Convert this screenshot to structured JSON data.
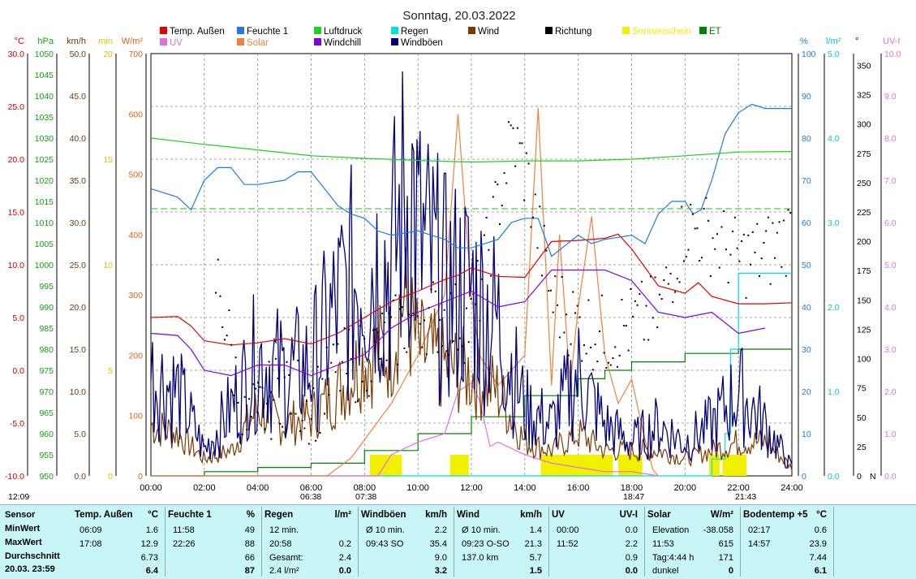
{
  "title": "Sonntag, 20.03.2022",
  "legend": [
    {
      "name": "Temp. Außen",
      "color": "#e00000"
    },
    {
      "name": "Feuchte 1",
      "color": "#1f7be0"
    },
    {
      "name": "Luftdruck",
      "color": "#20d020"
    },
    {
      "name": "Regen",
      "color": "#00e0e0"
    },
    {
      "name": "Wind",
      "color": "#7a3a00"
    },
    {
      "name": "Richtung",
      "color": "#000000"
    },
    {
      "name": "Sonnenschein",
      "color": "#f0f000"
    },
    {
      "name": "ET",
      "color": "#008000"
    },
    {
      "name": "UV",
      "color": "#e070e0"
    },
    {
      "name": "Solar",
      "color": "#f08040"
    },
    {
      "name": "Windchill",
      "color": "#8000e0"
    },
    {
      "name": "Windböen",
      "color": "#00007a"
    }
  ],
  "axes_left": [
    {
      "unit": "°C",
      "color": "#d00000",
      "ticks": [
        "30.0",
        "25.0",
        "20.0",
        "15.0",
        "10.0",
        "5.0",
        "0.0",
        "-5.0",
        "-10.0"
      ]
    },
    {
      "unit": "hPa",
      "color": "#10a010",
      "ticks": [
        "1050",
        "1045",
        "1040",
        "1035",
        "1030",
        "1025",
        "1020",
        "1015",
        "1010",
        "1005",
        "1000",
        "995",
        "990",
        "985",
        "980",
        "975",
        "970",
        "965",
        "960",
        "955",
        "950"
      ]
    },
    {
      "unit": "km/h",
      "color": "#6a3a10",
      "ticks": [
        "50.0",
        "45.0",
        "40.0",
        "35.0",
        "30.0",
        "25.0",
        "20.0",
        "15.0",
        "10.0",
        "5.0",
        "0.0"
      ]
    },
    {
      "unit": "min",
      "color": "#e0c000",
      "ticks": [
        "20",
        "15",
        "10",
        "5",
        "0"
      ]
    },
    {
      "unit": "W/m²",
      "color": "#e06020",
      "ticks": [
        "700",
        "600",
        "500",
        "400",
        "300",
        "200",
        "100",
        "0"
      ]
    }
  ],
  "axes_right": [
    {
      "unit": "%",
      "color": "#1f7be0",
      "ticks": [
        "100",
        "90",
        "80",
        "70",
        "60",
        "50",
        "40",
        "30",
        "20",
        "10",
        "0"
      ]
    },
    {
      "unit": "l/m²",
      "color": "#00c8d0",
      "ticks": [
        "5.0",
        "4.0",
        "3.0",
        "2.0",
        "1.0",
        "0.0"
      ]
    },
    {
      "unit": "°",
      "color": "#000000",
      "ticks": [
        "350",
        "325",
        "300",
        "275",
        "250",
        "225",
        "200",
        "175",
        "150",
        "125",
        "100",
        "75",
        "50",
        "25",
        "0"
      ],
      "extra": "N"
    },
    {
      "unit": "UV-I",
      "color": "#e070e0",
      "ticks": [
        "10.0",
        "9.0",
        "8.0",
        "7.0",
        "6.0",
        "5.0",
        "4.0",
        "3.0",
        "2.0",
        "1.0",
        "0.0"
      ]
    }
  ],
  "x_ticks": [
    "00:00",
    "02:00",
    "04:00",
    "06:00",
    "08:00",
    "10:00",
    "12:00",
    "14:00",
    "16:00",
    "18:00",
    "20:00",
    "22:00",
    "24:00"
  ],
  "sun_markers": {
    "now": "12:09",
    "sunrise": "06:38",
    "sunrise2": "07:38",
    "sunset": "18:47",
    "sunset2": "21:43"
  },
  "chart_data": {
    "type": "line",
    "title": "Sonntag, 20.03.2022",
    "x_unit": "hour of day",
    "xlim": [
      0,
      24
    ],
    "series": [
      {
        "name": "Temp. Außen",
        "unit": "°C",
        "x": [
          0,
          1,
          1.5,
          2,
          3,
          4,
          5,
          6,
          7,
          8,
          9,
          10,
          11,
          11.5,
          12,
          13,
          14,
          14.5,
          15,
          16,
          17,
          17.5,
          18,
          19,
          20,
          20.5,
          21,
          22,
          23,
          24
        ],
        "values": [
          5.0,
          5.1,
          4.2,
          2.8,
          2.4,
          2.6,
          3.0,
          2.5,
          3.5,
          5.0,
          6.5,
          7.5,
          8.6,
          9.0,
          9.7,
          8.9,
          8.8,
          10.5,
          12.2,
          12.3,
          12.5,
          12.9,
          11.5,
          8.0,
          7.3,
          8.3,
          7.0,
          6.3,
          6.3,
          6.4
        ]
      },
      {
        "name": "Feuchte 1",
        "unit": "%",
        "x": [
          0,
          1,
          1.5,
          2,
          2.5,
          3,
          3.5,
          4,
          5,
          5.5,
          6,
          6.5,
          7,
          7.5,
          8,
          8.5,
          9,
          10,
          10.5,
          11,
          11.5,
          12,
          13,
          13.5,
          14,
          14.5,
          15,
          16,
          16.5,
          17,
          18,
          18.5,
          19,
          19.5,
          20,
          20.3,
          20.6,
          21,
          21.5,
          22,
          22.5,
          23,
          24
        ],
        "values": [
          68,
          66,
          63,
          70,
          73,
          73,
          69,
          69,
          70,
          72,
          72,
          68,
          64,
          62,
          61,
          58,
          57,
          58,
          57,
          56,
          54,
          54,
          56,
          60,
          61,
          61,
          52,
          57,
          55,
          56,
          57,
          55,
          62,
          65,
          65,
          62,
          63,
          70,
          81,
          86,
          88,
          87,
          87
        ]
      },
      {
        "name": "Luftdruck",
        "unit": "hPa",
        "x": [
          0,
          2,
          4,
          6,
          8,
          10,
          12,
          14,
          16,
          18,
          20,
          22,
          24
        ],
        "values": [
          1030.0,
          1028.5,
          1027.2,
          1025.8,
          1025.2,
          1024.7,
          1024.3,
          1024.6,
          1024.6,
          1025.0,
          1025.8,
          1026.7,
          1026.8
        ]
      },
      {
        "name": "Windchill",
        "unit": "°C",
        "x": [
          0,
          1,
          1.5,
          2,
          3,
          4,
          5,
          6,
          7,
          8,
          9,
          10,
          11,
          12,
          13,
          14,
          15,
          16,
          17,
          18,
          19,
          20,
          21,
          22,
          23
        ],
        "values": [
          3.5,
          3.3,
          2.0,
          0.0,
          -0.5,
          0.5,
          0.5,
          -0.5,
          0.5,
          1.5,
          4.0,
          5.5,
          6.5,
          7.5,
          6.0,
          6.5,
          9.5,
          9.5,
          9.5,
          8.5,
          5.5,
          5.0,
          5.5,
          3.5,
          4.0
        ]
      },
      {
        "name": "Solar",
        "unit": "W/m²",
        "x": [
          0,
          6.6,
          7.5,
          8.5,
          9,
          10,
          11,
          11.5,
          12,
          12.3,
          13,
          14,
          14.5,
          15,
          15.3,
          15.7,
          16,
          16.5,
          17,
          17.5,
          18,
          18.5,
          18.8,
          19
        ],
        "values": [
          0,
          0,
          30,
          90,
          120,
          200,
          300,
          600,
          300,
          200,
          150,
          200,
          610,
          150,
          400,
          150,
          280,
          430,
          200,
          120,
          160,
          60,
          10,
          0
        ]
      },
      {
        "name": "UV",
        "unit": "UV-I",
        "x": [
          0,
          8.5,
          9,
          10,
          11,
          11.5,
          12,
          12.3,
          12.7,
          13,
          14,
          15,
          16,
          17,
          18,
          19
        ],
        "values": [
          0,
          0,
          0.5,
          0.8,
          1.0,
          2.0,
          2.2,
          1.8,
          0.7,
          0.8,
          0.5,
          0.3,
          0.2,
          0.1,
          0.1,
          0
        ]
      },
      {
        "name": "Wind",
        "unit": "km/h",
        "x": [
          0,
          1,
          2,
          3,
          4,
          5,
          6,
          7,
          8,
          9,
          9.4,
          10,
          11,
          12,
          13,
          14,
          15,
          16,
          17,
          18,
          19,
          20,
          21,
          22,
          23,
          24
        ],
        "values": [
          6,
          5,
          2,
          3,
          8,
          6,
          7,
          10,
          14,
          15,
          21.3,
          15,
          13,
          12,
          10,
          4,
          3,
          5,
          3,
          3,
          3,
          2,
          3,
          4,
          4,
          1
        ]
      },
      {
        "name": "Windböen",
        "unit": "km/h",
        "x": [
          0,
          1,
          2,
          3,
          4,
          5,
          6,
          7,
          8,
          9,
          9.7,
          10,
          11,
          12,
          13,
          14,
          15,
          16,
          17,
          18,
          19,
          20,
          21,
          22,
          23,
          24
        ],
        "values": [
          12,
          10,
          3,
          8,
          14,
          12,
          13,
          20,
          25,
          25,
          35.4,
          28,
          22,
          22,
          18,
          8,
          6,
          12,
          6,
          4,
          6,
          4,
          6,
          10,
          6,
          1
        ]
      },
      {
        "name": "Richtung",
        "unit": "°",
        "x": [
          2.5,
          3.5,
          5,
          6,
          7,
          8,
          9,
          10,
          12,
          13.5,
          14,
          15,
          16,
          17,
          18,
          19,
          20,
          21,
          22,
          23,
          23.5,
          24
        ],
        "values": [
          165,
          40,
          80,
          60,
          90,
          100,
          120,
          140,
          130,
          290,
          260,
          150,
          130,
          120,
          130,
          140,
          215,
          205,
          185,
          190,
          200,
          210
        ]
      },
      {
        "name": "Regen",
        "unit": "l/m²",
        "x": [
          0,
          20.9,
          21,
          21.5,
          21.7,
          22,
          24
        ],
        "values": [
          0,
          0,
          0.2,
          0.5,
          1.5,
          2.4,
          2.4
        ]
      },
      {
        "name": "ET",
        "unit": "l/m²",
        "x": [
          0,
          2,
          4,
          6,
          8,
          10,
          12,
          14,
          16,
          17,
          18,
          20,
          21,
          22,
          24
        ],
        "values": [
          0,
          0.05,
          0.1,
          0.15,
          0.3,
          0.5,
          0.7,
          0.95,
          1.15,
          1.25,
          1.35,
          1.45,
          1.45,
          1.5,
          1.5
        ]
      },
      {
        "name": "Sonnenschein",
        "unit": "min",
        "intervals": [
          [
            8.2,
            9.4
          ],
          [
            11.2,
            11.9
          ],
          [
            14.6,
            17.3
          ],
          [
            17.5,
            18.4
          ],
          [
            20.9,
            21.3
          ],
          [
            21.4,
            22.3
          ]
        ]
      }
    ]
  },
  "table": {
    "row_labels": [
      "Sensor",
      "MinWert",
      "MaxWert",
      "Durchschnitt",
      "20.03.  23:59"
    ],
    "groups": [
      {
        "title": "Temp. Außen",
        "unit": "°C",
        "rows": [
          [
            "06:09",
            "1.6"
          ],
          [
            "17:08",
            "12.9"
          ],
          [
            "",
            "6.73"
          ],
          [
            "",
            "6.4"
          ]
        ]
      },
      {
        "title": "Feuchte 1",
        "unit": "%",
        "rows": [
          [
            "11:58",
            "49"
          ],
          [
            "22:26",
            "88"
          ],
          [
            "",
            "66"
          ],
          [
            "",
            "87"
          ]
        ]
      },
      {
        "title": "Regen",
        "unit": "l/m²",
        "rows": [
          [
            "12 min.",
            ""
          ],
          [
            "20:58",
            "0.2"
          ],
          [
            "Gesamt:",
            "2.4"
          ],
          [
            "2.4 l/m²",
            "0.0"
          ]
        ]
      },
      {
        "title": "Windböen",
        "unit": "km/h",
        "rows": [
          [
            "Ø 10 min.",
            "2.2"
          ],
          [
            "09:43   SO",
            "35.4"
          ],
          [
            "",
            "9.0"
          ],
          [
            "",
            "3.2"
          ]
        ]
      },
      {
        "title": "Wind",
        "unit": "km/h",
        "rows": [
          [
            "Ø 10 min.",
            "1.4"
          ],
          [
            "09:23   O-SO",
            "21.3"
          ],
          [
            "137.0 km",
            "5.7"
          ],
          [
            "",
            "1.5"
          ]
        ]
      },
      {
        "title": "UV",
        "unit": "UV-I",
        "rows": [
          [
            "00:00",
            "0.0"
          ],
          [
            "11:52",
            "2.2"
          ],
          [
            "",
            "0.9"
          ],
          [
            "",
            "0.0"
          ]
        ]
      },
      {
        "title": "Solar",
        "unit": "W/m²",
        "rows": [
          [
            "Elevation",
            "-38.058"
          ],
          [
            "11:53",
            "615"
          ],
          [
            "Tag:4:44 h",
            "171"
          ],
          [
            "dunkel",
            "0"
          ]
        ]
      },
      {
        "title": "Bodentemp +5",
        "unit": "°C",
        "rows": [
          [
            "02:17",
            "0.6"
          ],
          [
            "14:57",
            "23.9"
          ],
          [
            "",
            "7.44"
          ],
          [
            "",
            "6.1"
          ]
        ]
      }
    ]
  }
}
